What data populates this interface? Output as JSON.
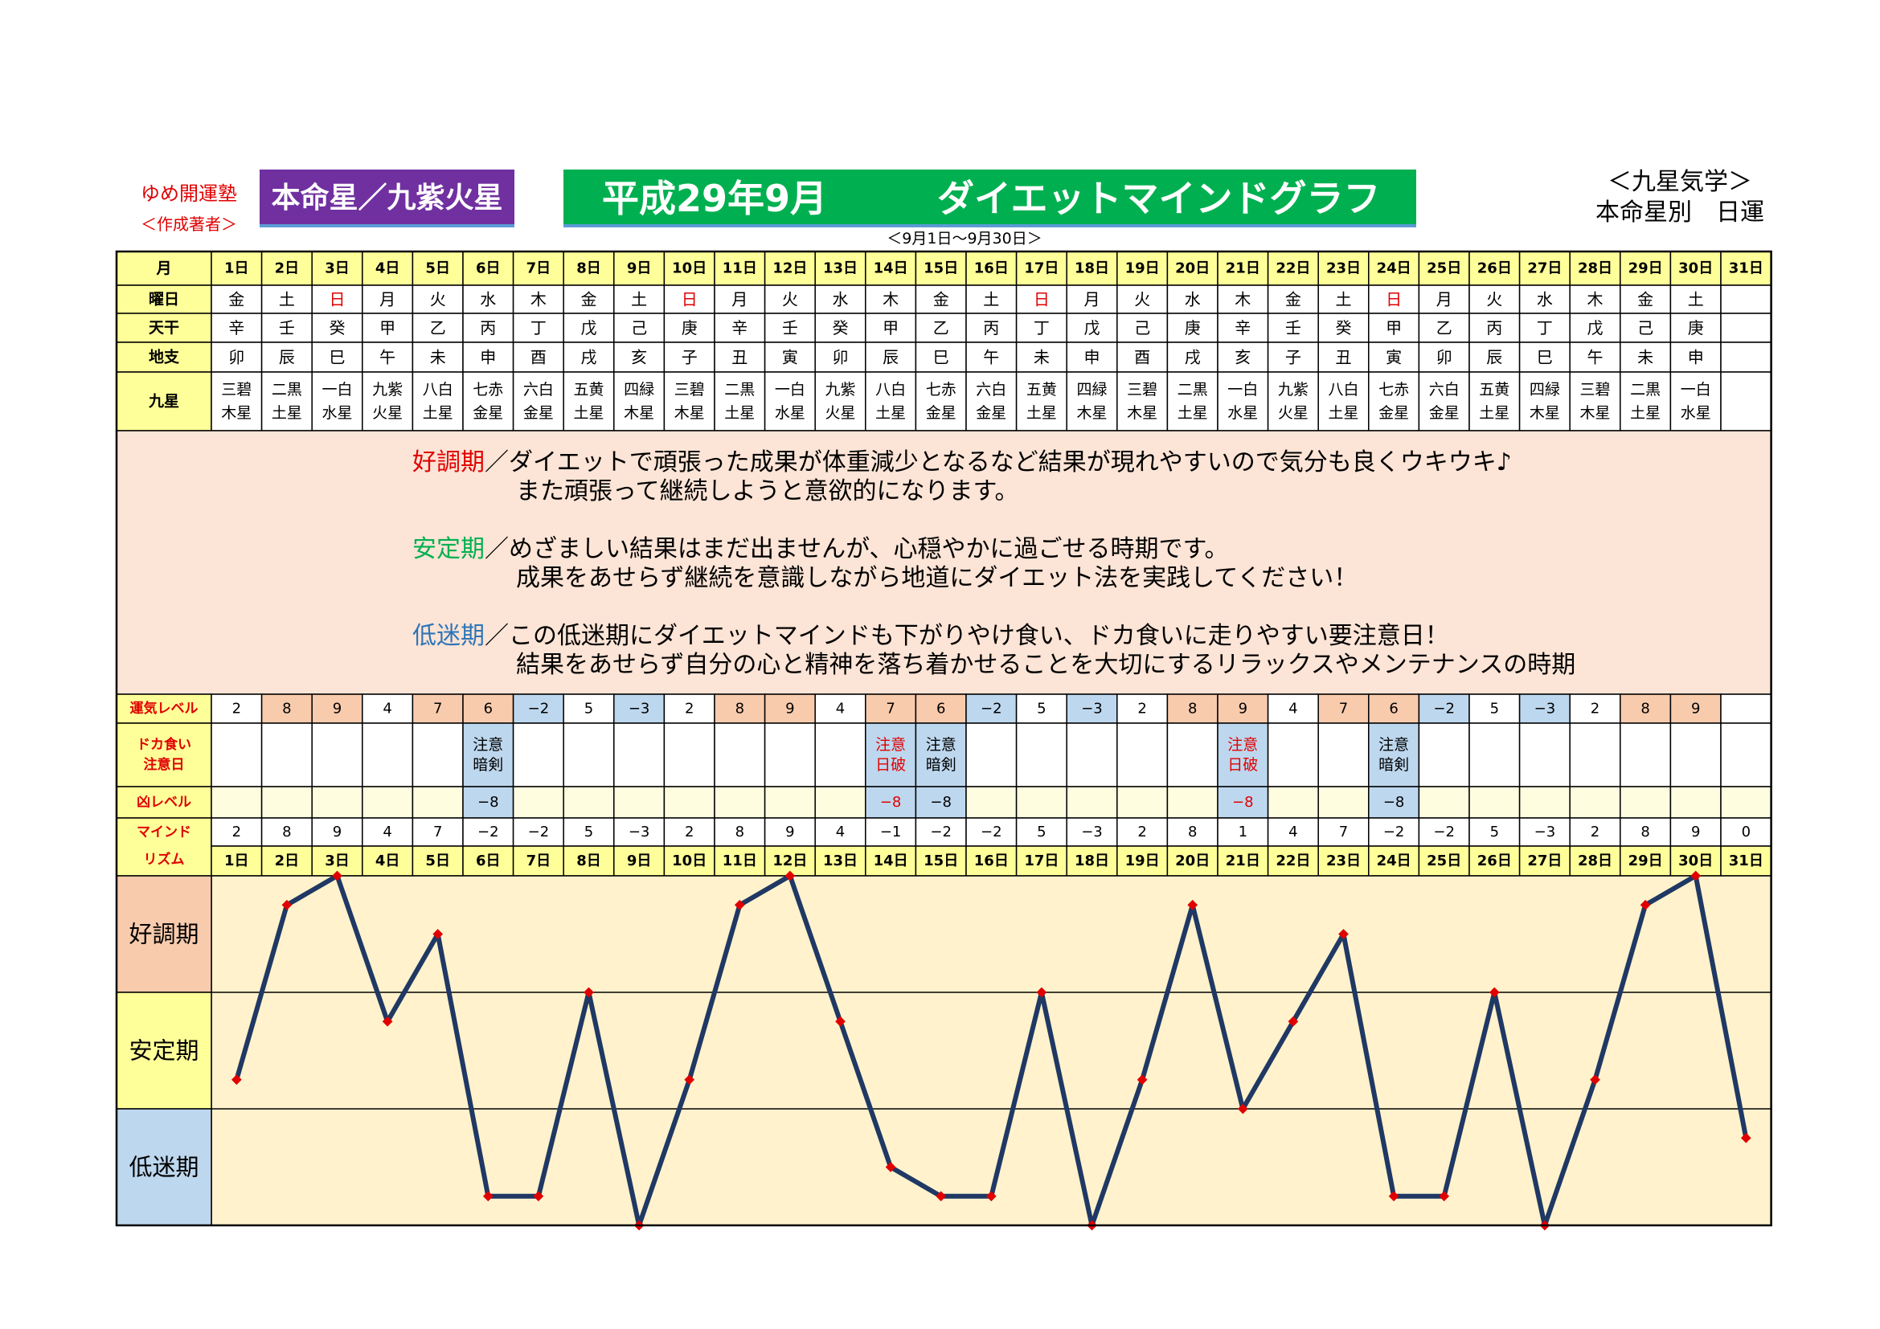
{
  "header": {
    "brand": "ゆめ開運塾",
    "brand_sub": "＜作成著者＞",
    "honmei_label": "本命星／九紫火星",
    "title_date": "平成29年9月",
    "title_main": "ダイエットマインドグラフ",
    "date_range": "＜9月1日～9月30日＞",
    "kyusei_label": "＜九星気学＞",
    "kyusei_sub": "本命星別　日運"
  },
  "row_labels": {
    "month": "月",
    "weekday": "曜日",
    "tenkan": "天干",
    "chishi": "地支",
    "kyusei": "九星",
    "fortune": "運気レベル",
    "binge_line1": "ドカ食い",
    "binge_line2": "注意日",
    "bad": "凶レベル",
    "mind_line1": "マインド",
    "mind_line2": "リズム"
  },
  "days": [
    "1日",
    "2日",
    "3日",
    "4日",
    "5日",
    "6日",
    "7日",
    "8日",
    "9日",
    "10日",
    "11日",
    "12日",
    "13日",
    "14日",
    "15日",
    "16日",
    "17日",
    "18日",
    "19日",
    "20日",
    "21日",
    "22日",
    "23日",
    "24日",
    "25日",
    "26日",
    "27日",
    "28日",
    "29日",
    "30日",
    "31日"
  ],
  "weekdays": [
    "金",
    "土",
    "日",
    "月",
    "火",
    "水",
    "木",
    "金",
    "土",
    "日",
    "月",
    "火",
    "水",
    "木",
    "金",
    "土",
    "日",
    "月",
    "火",
    "水",
    "木",
    "金",
    "土",
    "日",
    "月",
    "火",
    "水",
    "木",
    "金",
    "土",
    ""
  ],
  "tenkan": [
    "辛",
    "壬",
    "癸",
    "甲",
    "乙",
    "丙",
    "丁",
    "戊",
    "己",
    "庚",
    "辛",
    "壬",
    "癸",
    "甲",
    "乙",
    "丙",
    "丁",
    "戊",
    "己",
    "庚",
    "辛",
    "壬",
    "癸",
    "甲",
    "乙",
    "丙",
    "丁",
    "戊",
    "己",
    "庚",
    ""
  ],
  "chishi": [
    "卯",
    "辰",
    "巳",
    "午",
    "未",
    "申",
    "酉",
    "戌",
    "亥",
    "子",
    "丑",
    "寅",
    "卯",
    "辰",
    "巳",
    "午",
    "未",
    "申",
    "酉",
    "戌",
    "亥",
    "子",
    "丑",
    "寅",
    "卯",
    "辰",
    "巳",
    "午",
    "未",
    "申",
    ""
  ],
  "kyusei": [
    [
      "三碧",
      "木星"
    ],
    [
      "二黒",
      "土星"
    ],
    [
      "一白",
      "水星"
    ],
    [
      "九紫",
      "火星"
    ],
    [
      "八白",
      "土星"
    ],
    [
      "七赤",
      "金星"
    ],
    [
      "六白",
      "金星"
    ],
    [
      "五黄",
      "土星"
    ],
    [
      "四緑",
      "木星"
    ],
    [
      "三碧",
      "木星"
    ],
    [
      "二黒",
      "土星"
    ],
    [
      "一白",
      "水星"
    ],
    [
      "九紫",
      "火星"
    ],
    [
      "八白",
      "土星"
    ],
    [
      "七赤",
      "金星"
    ],
    [
      "六白",
      "金星"
    ],
    [
      "五黄",
      "土星"
    ],
    [
      "四緑",
      "木星"
    ],
    [
      "三碧",
      "木星"
    ],
    [
      "二黒",
      "土星"
    ],
    [
      "一白",
      "水星"
    ],
    [
      "九紫",
      "火星"
    ],
    [
      "八白",
      "土星"
    ],
    [
      "七赤",
      "金星"
    ],
    [
      "六白",
      "金星"
    ],
    [
      "五黄",
      "土星"
    ],
    [
      "四緑",
      "木星"
    ],
    [
      "三碧",
      "木星"
    ],
    [
      "二黒",
      "土星"
    ],
    [
      "一白",
      "水星"
    ],
    [
      "",
      ""
    ]
  ],
  "messages": {
    "good_label": "好調期",
    "good_line1": "／ダイエットで頑張った成果が体重減少となるなど結果が現れやすいので気分も良くウキウキ♪",
    "good_line2": "また頑張って継続しようと意欲的になります。",
    "stable_label": "安定期",
    "stable_line1": "／めざましい結果はまだ出ませんが、心穏やかに過ごせる時期です。",
    "stable_line2": "成果をあせらず継続を意識しながら地道にダイエット法を実践してください！",
    "low_label": "低迷期",
    "low_line1": "／この低迷期にダイエットマインドも下がりやけ食い、ドカ食いに走りやすい要注意日！",
    "low_line2": "結果をあせらず自分の心と精神を落ち着かせることを大切にするリラックスやメンテナンスの時期"
  },
  "fortune_levels": [
    "2",
    "8",
    "9",
    "4",
    "7",
    "6",
    "−2",
    "5",
    "−3",
    "2",
    "8",
    "9",
    "4",
    "7",
    "6",
    "−2",
    "5",
    "−3",
    "2",
    "8",
    "9",
    "4",
    "7",
    "6",
    "−2",
    "5",
    "−3",
    "2",
    "8",
    "9",
    ""
  ],
  "binge": [
    [
      "",
      ""
    ],
    [
      "",
      ""
    ],
    [
      "",
      ""
    ],
    [
      "",
      ""
    ],
    [
      "",
      ""
    ],
    [
      "注意",
      "暗剣"
    ],
    [
      "",
      ""
    ],
    [
      "",
      ""
    ],
    [
      "",
      ""
    ],
    [
      "",
      ""
    ],
    [
      "",
      ""
    ],
    [
      "",
      ""
    ],
    [
      "",
      ""
    ],
    [
      "注意",
      "日破"
    ],
    [
      "注意",
      "暗剣"
    ],
    [
      "",
      ""
    ],
    [
      "",
      ""
    ],
    [
      "",
      ""
    ],
    [
      "",
      ""
    ],
    [
      "",
      ""
    ],
    [
      "注意",
      "日破"
    ],
    [
      "",
      ""
    ],
    [
      "",
      ""
    ],
    [
      "注意",
      "暗剣"
    ],
    [
      "",
      ""
    ],
    [
      "",
      ""
    ],
    [
      "",
      ""
    ],
    [
      "",
      ""
    ],
    [
      "",
      ""
    ],
    [
      "",
      ""
    ],
    [
      "",
      ""
    ]
  ],
  "bad_levels": [
    "",
    "",
    "",
    "",
    "",
    "−8",
    "",
    "",
    "",
    "",
    "",
    "",
    "",
    "−8",
    "−8",
    "",
    "",
    "",
    "",
    "",
    "−8",
    "",
    "",
    "−8",
    "",
    "",
    "",
    "",
    "",
    "",
    ""
  ],
  "mind_labels": [
    "2",
    "8",
    "9",
    "4",
    "7",
    "−2",
    "−2",
    "5",
    "−3",
    "2",
    "8",
    "9",
    "4",
    "−1",
    "−2",
    "−2",
    "5",
    "−3",
    "2",
    "8",
    "1",
    "4",
    "7",
    "−2",
    "−2",
    "5",
    "−3",
    "2",
    "8",
    "9",
    "0"
  ],
  "zone_labels": [
    "好調期",
    "安定期",
    "低迷期"
  ],
  "colors": {
    "good": "#f8cbad",
    "stable": "#ffff99",
    "low": "#bdd7ee",
    "chart_bg": "#fff2cc",
    "header_bg": "#ffff99",
    "message_bg": "#fce4d6",
    "line": "#1f3864",
    "marker": "#e00000",
    "sunday": "#e00000"
  },
  "chart_data": {
    "type": "line",
    "x": [
      "1日",
      "2日",
      "3日",
      "4日",
      "5日",
      "6日",
      "7日",
      "8日",
      "9日",
      "10日",
      "11日",
      "12日",
      "13日",
      "14日",
      "15日",
      "16日",
      "17日",
      "18日",
      "19日",
      "20日",
      "21日",
      "22日",
      "23日",
      "24日",
      "25日",
      "26日",
      "27日",
      "28日",
      "29日",
      "30日",
      "31日"
    ],
    "series": [
      {
        "values": [
          2,
          8,
          9,
          4,
          7,
          -2,
          -2,
          5,
          -3,
          2,
          8,
          9,
          4,
          -1,
          -2,
          -2,
          5,
          -3,
          2,
          8,
          1,
          4,
          7,
          -2,
          -2,
          5,
          -3,
          2,
          8,
          9,
          0
        ]
      }
    ],
    "ylim": [
      -3,
      9
    ],
    "zones": [
      "好調期",
      "安定期",
      "低迷期"
    ],
    "grid": true,
    "title": "",
    "xlabel": "",
    "ylabel": ""
  }
}
